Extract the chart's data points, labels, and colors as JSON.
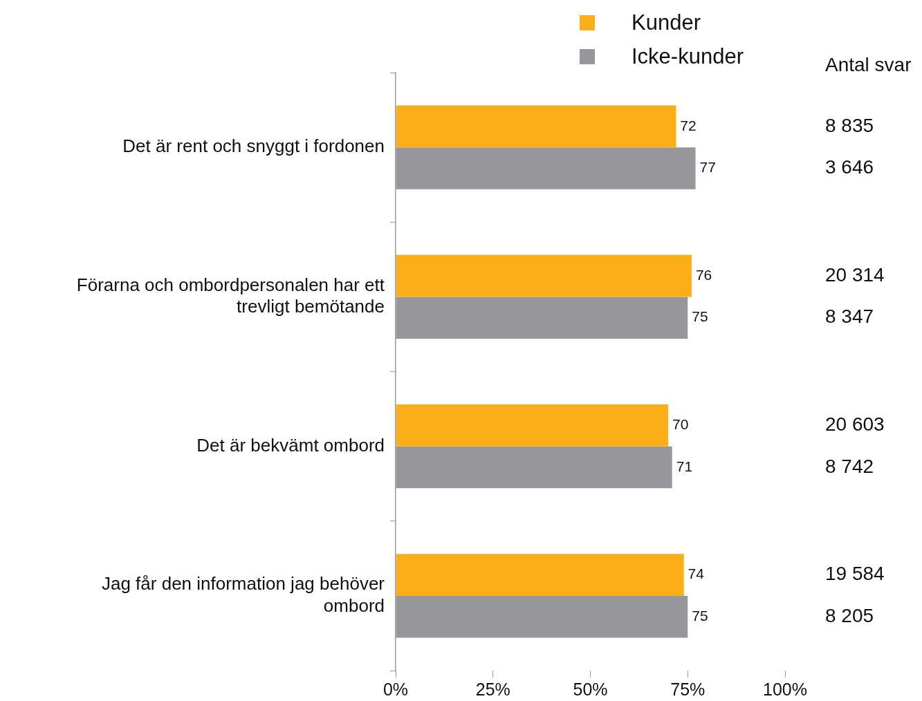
{
  "chart_data": {
    "type": "bar",
    "orientation": "horizontal",
    "categories": [
      "Det är rent och snyggt i fordonen",
      "Förarna och ombordpersonalen har ett trevligt bemötande",
      "Det är bekvämt ombord",
      "Jag får den information jag behöver ombord"
    ],
    "series": [
      {
        "name": "Kunder",
        "color": "#fbae17",
        "values": [
          72,
          76,
          70,
          74
        ]
      },
      {
        "name": "Icke-kunder",
        "color": "#97979b",
        "values": [
          77,
          75,
          71,
          75
        ]
      }
    ],
    "xlim": [
      0,
      100
    ],
    "xticks": [
      {
        "value": 0,
        "label": "0%"
      },
      {
        "value": 25,
        "label": "25%"
      },
      {
        "value": 50,
        "label": "50%"
      },
      {
        "value": 75,
        "label": "75%"
      },
      {
        "value": 100,
        "label": "100%"
      }
    ],
    "data_labels": true,
    "grid": false,
    "legend": "top",
    "annotations": [
      "Antal svar",
      "8 835",
      "3 646",
      "20 314",
      "8 347",
      "20 603",
      "8 742",
      "19 584",
      "8 205"
    ]
  }
}
